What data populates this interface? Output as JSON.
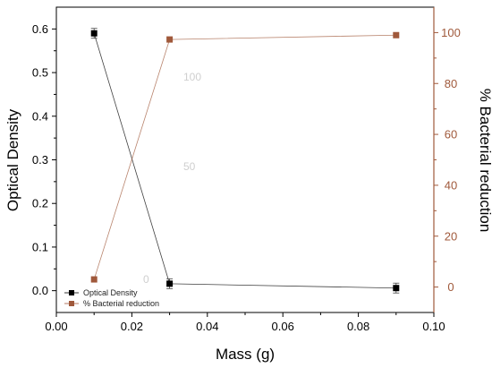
{
  "chart_data": {
    "type": "line",
    "xlabel": "Mass (g)",
    "xlim": [
      0.0,
      0.1
    ],
    "x_ticks": [
      "0.00",
      "0.02",
      "0.04",
      "0.06",
      "0.08",
      "0.10"
    ],
    "y_left": {
      "label": "Optical Density",
      "ylim": [
        -0.05,
        0.65
      ],
      "ticks": [
        "0.0",
        "0.1",
        "0.2",
        "0.3",
        "0.4",
        "0.5",
        "0.6"
      ]
    },
    "y_right": {
      "label": "% Bacterial reduction",
      "ylim": [
        -10,
        110
      ],
      "ticks": [
        "0",
        "20",
        "40",
        "60",
        "80",
        "100"
      ]
    },
    "series": [
      {
        "name": "Optical Density",
        "axis": "left",
        "color": "#000000",
        "marker": "square",
        "x": [
          0.01,
          0.03,
          0.09
        ],
        "y": [
          0.59,
          0.016,
          0.006
        ]
      },
      {
        "name": "% Bacterial reduction",
        "axis": "right",
        "color": "#a0593b",
        "marker": "square",
        "x": [
          0.01,
          0.03,
          0.09
        ],
        "y": [
          3,
          97.3,
          99
        ]
      }
    ],
    "legend": {
      "placement": "bottom-left"
    },
    "grid": false,
    "right_axis_color": "#a0593b",
    "ghost_labels": [
      "100",
      "50",
      "0"
    ]
  }
}
